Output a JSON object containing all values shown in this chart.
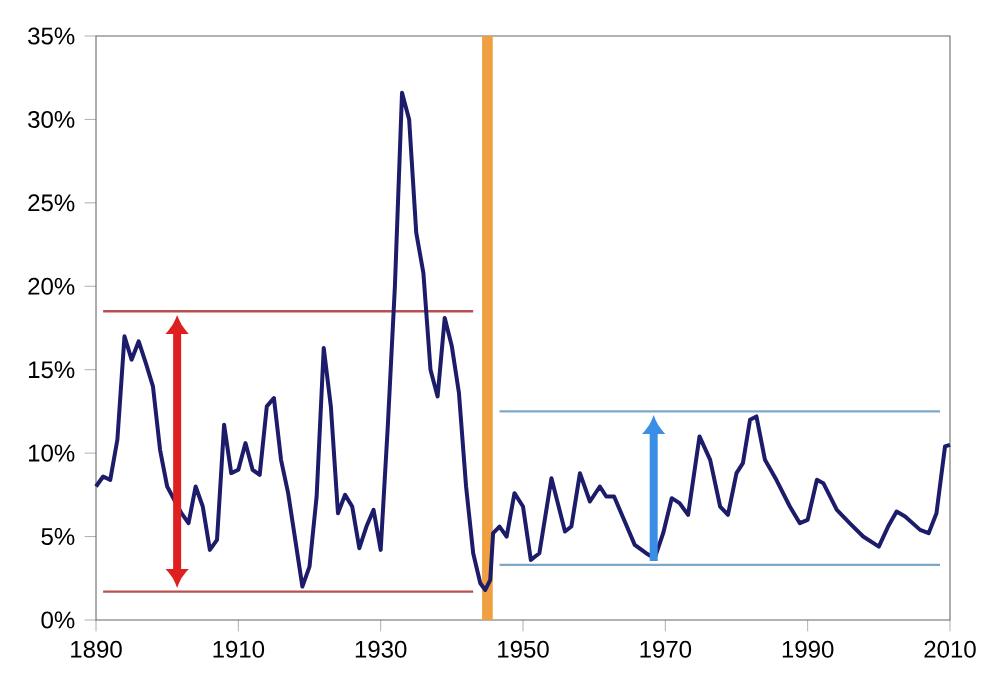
{
  "chart_data": {
    "type": "line",
    "xlim": [
      1890,
      2010
    ],
    "ylim": [
      0,
      35
    ],
    "xticks": [
      1890,
      1910,
      1930,
      1950,
      1970,
      1990,
      2010
    ],
    "yticks": [
      {
        "value": 0,
        "label": "0%"
      },
      {
        "value": 5,
        "label": "5%"
      },
      {
        "value": 10,
        "label": "10%"
      },
      {
        "value": 15,
        "label": "15%"
      },
      {
        "value": 20,
        "label": "20%"
      },
      {
        "value": 25,
        "label": "25%"
      },
      {
        "value": 30,
        "label": "30%"
      },
      {
        "value": 35,
        "label": "35%"
      }
    ],
    "ref_lines": [
      {
        "axis": "x",
        "value": 1945,
        "color": "#f0a040"
      }
    ],
    "series": [
      {
        "color": "#b85050",
        "x": [
          1891,
          1943
        ],
        "values": [
          18.5,
          18.5
        ]
      },
      {
        "color": "#b85050",
        "x": [
          1891,
          1943
        ],
        "values": [
          1.7,
          1.7
        ]
      },
      {
        "color": "#7ea8c8",
        "x": [
          1946.7,
          2008.6
        ],
        "values": [
          12.5,
          12.5
        ]
      },
      {
        "color": "#7ea8c8",
        "x": [
          1946.7,
          2008.6
        ],
        "values": [
          3.3,
          3.3
        ]
      },
      {
        "color": "#1c1c6a",
        "x": [
          1890,
          1891,
          1892,
          1893,
          1894,
          1895,
          1896,
          1897,
          1898,
          1899,
          1900,
          1902,
          1903,
          1904,
          1905,
          1906,
          1907,
          1908,
          1909,
          1910,
          1911,
          1912,
          1913,
          1914,
          1915,
          1916,
          1917,
          1919,
          1920,
          1921,
          1922,
          1923,
          1924,
          1925,
          1926,
          1927,
          1928,
          1929,
          1930,
          1931,
          1932,
          1933,
          1934,
          1935,
          1936,
          1937,
          1938,
          1939,
          1940,
          1941,
          1942,
          1943,
          1944,
          1944.7,
          1945.4,
          1945.8,
          1946.7,
          1947.7,
          1948.8,
          1950,
          1951.1,
          1952.3,
          1954,
          1955.9,
          1956.8,
          1958,
          1959.4,
          1960.8,
          1961.7,
          1962.8,
          1964,
          1965.7,
          1967.3,
          1968.5,
          1969.7,
          1970.9,
          1972,
          1973.2,
          1974.8,
          1976.3,
          1977.7,
          1978.8,
          1980,
          1980.9,
          1981.9,
          1982.8,
          1984,
          1985.6,
          1987.5,
          1988.9,
          1990,
          1991.3,
          1992.2,
          1994.1,
          1995.9,
          1997.8,
          2000,
          2001.3,
          2002.5,
          2003.7,
          2005.8,
          2007,
          2008.1,
          2009.3,
          2010
        ],
        "values": [
          8.0,
          8.6,
          8.4,
          10.8,
          17.0,
          15.6,
          16.7,
          15.4,
          14.0,
          10.2,
          8.0,
          6.4,
          5.8,
          8.0,
          6.8,
          4.2,
          4.8,
          11.7,
          8.8,
          9.0,
          10.6,
          9.0,
          8.7,
          12.8,
          13.3,
          9.6,
          7.6,
          2.0,
          3.2,
          7.4,
          16.3,
          12.8,
          6.4,
          7.5,
          6.8,
          4.3,
          5.6,
          6.6,
          4.2,
          11.6,
          20.0,
          31.6,
          30.0,
          23.2,
          20.8,
          15.0,
          13.4,
          18.1,
          16.4,
          13.6,
          8.0,
          4.0,
          2.2,
          1.8,
          2.4,
          5.2,
          5.6,
          5.0,
          7.6,
          6.8,
          3.6,
          4.0,
          8.5,
          5.3,
          5.6,
          8.8,
          7.1,
          8.0,
          7.4,
          7.4,
          6.2,
          4.5,
          4.0,
          3.7,
          5.2,
          7.3,
          7.0,
          6.3,
          11.0,
          9.6,
          6.8,
          6.3,
          8.8,
          9.4,
          12.0,
          12.2,
          9.6,
          8.4,
          6.8,
          5.8,
          6.0,
          8.4,
          8.2,
          6.6,
          5.8,
          5.0,
          4.4,
          5.6,
          6.5,
          6.2,
          5.4,
          5.2,
          6.4,
          10.4,
          10.5
        ]
      }
    ]
  }
}
